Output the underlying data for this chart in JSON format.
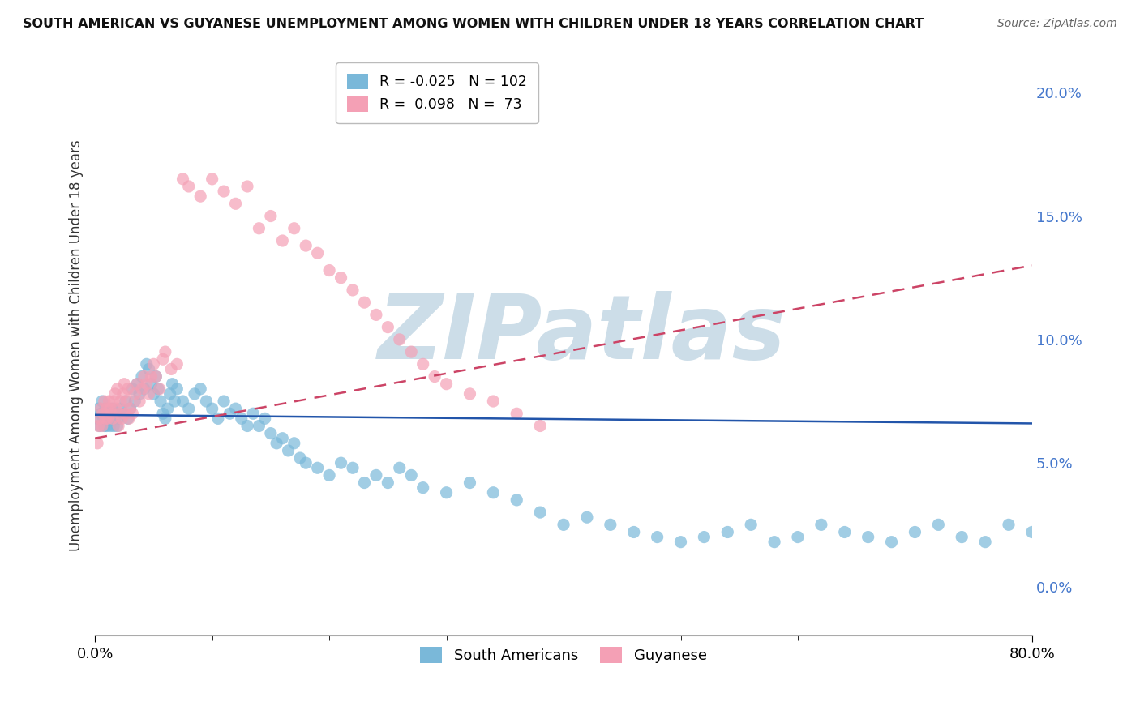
{
  "title": "SOUTH AMERICAN VS GUYANESE UNEMPLOYMENT AMONG WOMEN WITH CHILDREN UNDER 18 YEARS CORRELATION CHART",
  "source": "Source: ZipAtlas.com",
  "ylabel": "Unemployment Among Women with Children Under 18 years",
  "south_american_color": "#7ab8d9",
  "guyanese_color": "#f4a0b5",
  "trend_sa_color": "#2255aa",
  "trend_gu_color": "#cc4466",
  "watermark": "ZIPatlas",
  "watermark_color": "#ccdde8",
  "background_color": "#ffffff",
  "grid_color": "#cccccc",
  "R_sa": -0.025,
  "N_sa": 102,
  "R_gu": 0.098,
  "N_gu": 73,
  "sa_label": "South Americans",
  "gu_label": "Guyanese",
  "xlim": [
    0.0,
    0.8
  ],
  "ylim": [
    -0.02,
    0.215
  ],
  "ytick_vals": [
    0.0,
    0.05,
    0.1,
    0.15,
    0.2
  ],
  "ytick_labels": [
    "0.0%",
    "5.0%",
    "10.0%",
    "15.0%",
    "20.0%"
  ],
  "xtick_vals": [
    0.0,
    0.8
  ],
  "xtick_labels": [
    "0.0%",
    "80.0%"
  ],
  "sa_x": [
    0.002,
    0.003,
    0.004,
    0.005,
    0.006,
    0.007,
    0.008,
    0.009,
    0.01,
    0.011,
    0.012,
    0.013,
    0.014,
    0.015,
    0.016,
    0.017,
    0.018,
    0.019,
    0.02,
    0.022,
    0.024,
    0.026,
    0.028,
    0.03,
    0.032,
    0.034,
    0.036,
    0.038,
    0.04,
    0.042,
    0.044,
    0.046,
    0.048,
    0.05,
    0.052,
    0.054,
    0.056,
    0.058,
    0.06,
    0.062,
    0.064,
    0.066,
    0.068,
    0.07,
    0.075,
    0.08,
    0.085,
    0.09,
    0.095,
    0.1,
    0.105,
    0.11,
    0.115,
    0.12,
    0.125,
    0.13,
    0.135,
    0.14,
    0.145,
    0.15,
    0.155,
    0.16,
    0.165,
    0.17,
    0.175,
    0.18,
    0.19,
    0.2,
    0.21,
    0.22,
    0.23,
    0.24,
    0.25,
    0.26,
    0.27,
    0.28,
    0.3,
    0.32,
    0.34,
    0.36,
    0.38,
    0.4,
    0.42,
    0.44,
    0.46,
    0.48,
    0.5,
    0.52,
    0.54,
    0.56,
    0.58,
    0.6,
    0.62,
    0.64,
    0.66,
    0.68,
    0.7,
    0.72,
    0.74,
    0.76,
    0.78,
    0.8
  ],
  "sa_y": [
    0.068,
    0.072,
    0.065,
    0.07,
    0.075,
    0.068,
    0.065,
    0.072,
    0.065,
    0.068,
    0.07,
    0.065,
    0.068,
    0.072,
    0.065,
    0.068,
    0.07,
    0.065,
    0.068,
    0.072,
    0.07,
    0.075,
    0.068,
    0.072,
    0.08,
    0.075,
    0.082,
    0.078,
    0.085,
    0.08,
    0.09,
    0.088,
    0.082,
    0.078,
    0.085,
    0.08,
    0.075,
    0.07,
    0.068,
    0.072,
    0.078,
    0.082,
    0.075,
    0.08,
    0.075,
    0.072,
    0.078,
    0.08,
    0.075,
    0.072,
    0.068,
    0.075,
    0.07,
    0.072,
    0.068,
    0.065,
    0.07,
    0.065,
    0.068,
    0.062,
    0.058,
    0.06,
    0.055,
    0.058,
    0.052,
    0.05,
    0.048,
    0.045,
    0.05,
    0.048,
    0.042,
    0.045,
    0.042,
    0.048,
    0.045,
    0.04,
    0.038,
    0.042,
    0.038,
    0.035,
    0.03,
    0.025,
    0.028,
    0.025,
    0.022,
    0.02,
    0.018,
    0.02,
    0.022,
    0.025,
    0.018,
    0.02,
    0.025,
    0.022,
    0.02,
    0.018,
    0.022,
    0.025,
    0.02,
    0.018,
    0.025,
    0.022
  ],
  "gu_x": [
    0.002,
    0.003,
    0.004,
    0.005,
    0.006,
    0.007,
    0.008,
    0.009,
    0.01,
    0.011,
    0.012,
    0.013,
    0.014,
    0.015,
    0.016,
    0.017,
    0.018,
    0.019,
    0.02,
    0.021,
    0.022,
    0.023,
    0.024,
    0.025,
    0.026,
    0.027,
    0.028,
    0.029,
    0.03,
    0.032,
    0.034,
    0.036,
    0.038,
    0.04,
    0.042,
    0.044,
    0.046,
    0.048,
    0.05,
    0.052,
    0.055,
    0.058,
    0.06,
    0.065,
    0.07,
    0.075,
    0.08,
    0.09,
    0.1,
    0.11,
    0.12,
    0.13,
    0.14,
    0.15,
    0.16,
    0.17,
    0.18,
    0.19,
    0.2,
    0.21,
    0.22,
    0.23,
    0.24,
    0.25,
    0.26,
    0.27,
    0.28,
    0.29,
    0.3,
    0.32,
    0.34,
    0.36,
    0.38
  ],
  "gu_y": [
    0.058,
    0.065,
    0.068,
    0.072,
    0.065,
    0.07,
    0.075,
    0.068,
    0.072,
    0.068,
    0.075,
    0.072,
    0.07,
    0.068,
    0.075,
    0.078,
    0.072,
    0.08,
    0.065,
    0.07,
    0.075,
    0.068,
    0.078,
    0.082,
    0.07,
    0.075,
    0.08,
    0.068,
    0.072,
    0.07,
    0.078,
    0.082,
    0.075,
    0.08,
    0.085,
    0.082,
    0.078,
    0.085,
    0.09,
    0.085,
    0.08,
    0.092,
    0.095,
    0.088,
    0.09,
    0.165,
    0.162,
    0.158,
    0.165,
    0.16,
    0.155,
    0.162,
    0.145,
    0.15,
    0.14,
    0.145,
    0.138,
    0.135,
    0.128,
    0.125,
    0.12,
    0.115,
    0.11,
    0.105,
    0.1,
    0.095,
    0.09,
    0.085,
    0.082,
    0.078,
    0.075,
    0.07,
    0.065
  ],
  "sa_trend_x0": 0.0,
  "sa_trend_x1": 0.8,
  "sa_trend_y0": 0.0695,
  "sa_trend_y1": 0.066,
  "gu_trend_x0": 0.0,
  "gu_trend_x1": 0.8,
  "gu_trend_y0": 0.06,
  "gu_trend_y1": 0.13
}
